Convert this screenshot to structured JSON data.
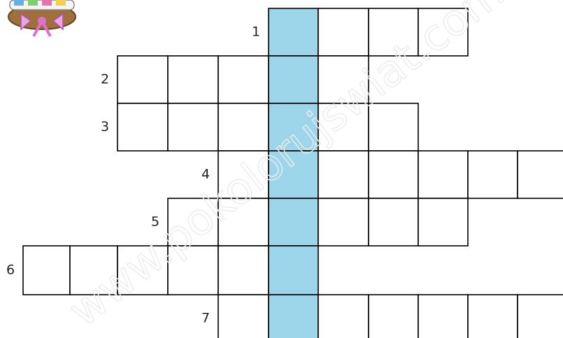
{
  "watermark": "www.pokolorujswiat.com",
  "rows": [
    {
      "number": "1"
    },
    {
      "number": "2"
    },
    {
      "number": "3"
    },
    {
      "number": "4"
    },
    {
      "number": "5"
    },
    {
      "number": "6"
    },
    {
      "number": "7"
    }
  ]
}
